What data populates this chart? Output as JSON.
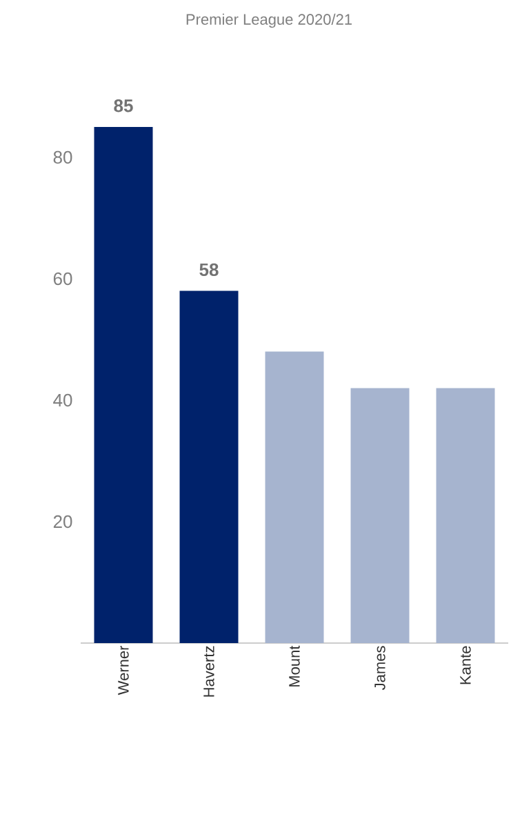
{
  "chart_data": {
    "type": "bar",
    "title": "Premier League 2020/21",
    "categories": [
      "Werner",
      "Havertz",
      "Mount",
      "James",
      "Kante"
    ],
    "values": [
      85,
      58,
      48,
      42,
      42
    ],
    "colors": [
      "#00226b",
      "#00226b",
      "#a6b4cf",
      "#a6b4cf",
      "#a6b4cf"
    ],
    "value_labels": [
      "85",
      "58",
      null,
      null,
      null
    ],
    "ylim": [
      0,
      85
    ],
    "yticks": [
      20,
      40,
      60,
      80
    ]
  }
}
